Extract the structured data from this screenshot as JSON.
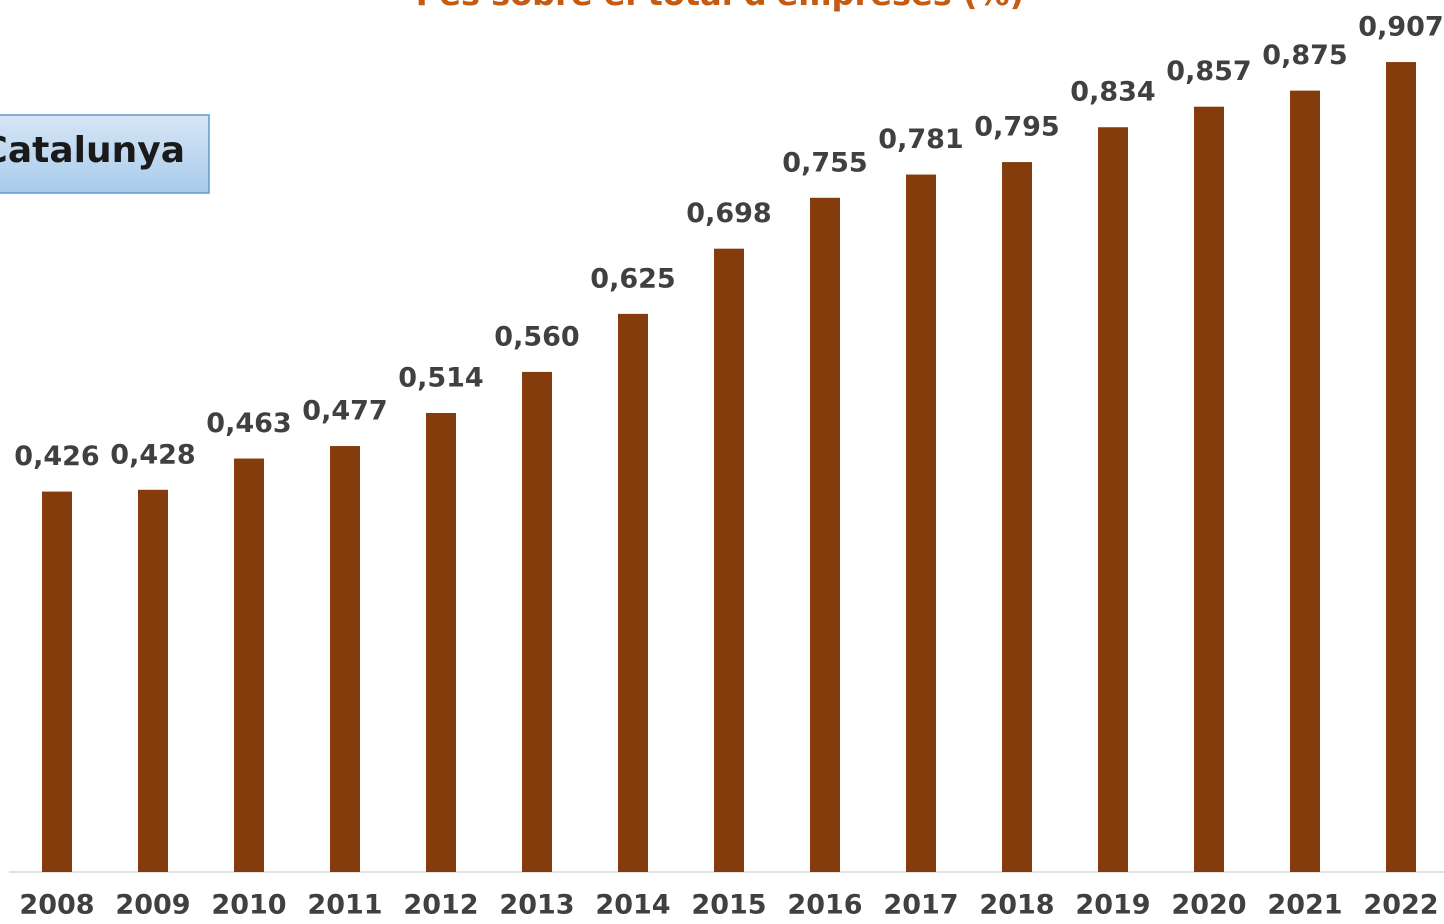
{
  "chart_data": {
    "type": "bar",
    "title": "Pes sobre el total d'empreses (%)",
    "annotation": "Catalunya",
    "categories": [
      "2008",
      "2009",
      "2010",
      "2011",
      "2012",
      "2013",
      "2014",
      "2015",
      "2016",
      "2017",
      "2018",
      "2019",
      "2020",
      "2021",
      "2022"
    ],
    "values": [
      0.426,
      0.428,
      0.463,
      0.477,
      0.514,
      0.56,
      0.625,
      0.698,
      0.755,
      0.781,
      0.795,
      0.834,
      0.857,
      0.875,
      0.907
    ],
    "value_labels": [
      "0,426",
      "0,428",
      "0,463",
      "0,477",
      "0,514",
      "0,560",
      "0,625",
      "0,698",
      "0,755",
      "0,781",
      "0,795",
      "0,834",
      "0,857",
      "0,875",
      "0,907"
    ],
    "color": "#843c0c",
    "ylim": [
      0,
      1
    ]
  }
}
